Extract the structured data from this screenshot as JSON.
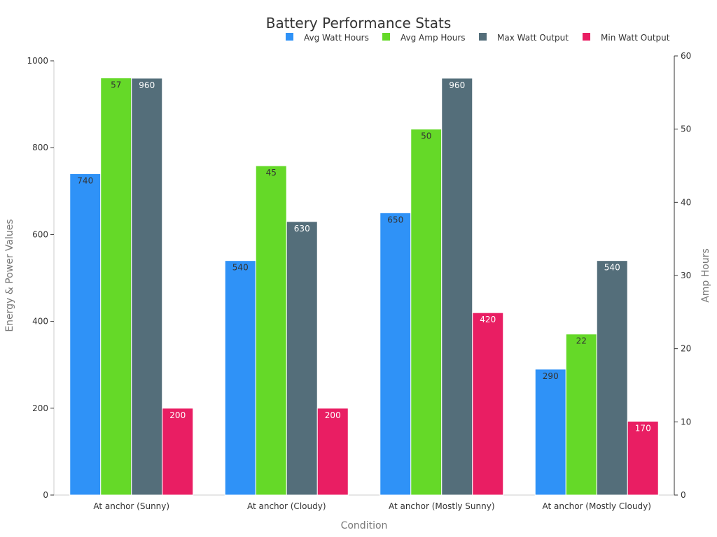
{
  "chart_data": {
    "type": "bar",
    "title": "Battery Performance Stats",
    "xlabel": "Condition",
    "ylabel": "Energy & Power Values",
    "y2label": "Amp Hours",
    "categories": [
      "At anchor (Sunny)",
      "At anchor (Cloudy)",
      "At anchor (Mostly Sunny)",
      "At anchor (Mostly Cloudy)"
    ],
    "ylim": [
      0,
      1000
    ],
    "y2lim": [
      0,
      60
    ],
    "yticks": [
      0,
      200,
      400,
      600,
      800,
      1000
    ],
    "y2ticks": [
      0,
      10,
      20,
      30,
      40,
      50,
      60
    ],
    "legend_position": "top-right",
    "grid": false,
    "series": [
      {
        "name": "Avg Watt Hours",
        "axis": "left",
        "color": "#2F92F7",
        "label_color": "#333333",
        "values": [
          740,
          540,
          650,
          290
        ]
      },
      {
        "name": "Avg Amp Hours",
        "axis": "right",
        "color": "#65D928",
        "label_color": "#333333",
        "values": [
          57,
          45,
          50,
          22
        ]
      },
      {
        "name": "Max Watt Output",
        "axis": "left",
        "color": "#546E7A",
        "label_color": "#ffffff",
        "values": [
          960,
          630,
          960,
          540
        ]
      },
      {
        "name": "Min Watt Output",
        "axis": "left",
        "color": "#E91E63",
        "label_color": "#ffffff",
        "values": [
          200,
          200,
          420,
          170
        ]
      }
    ]
  }
}
